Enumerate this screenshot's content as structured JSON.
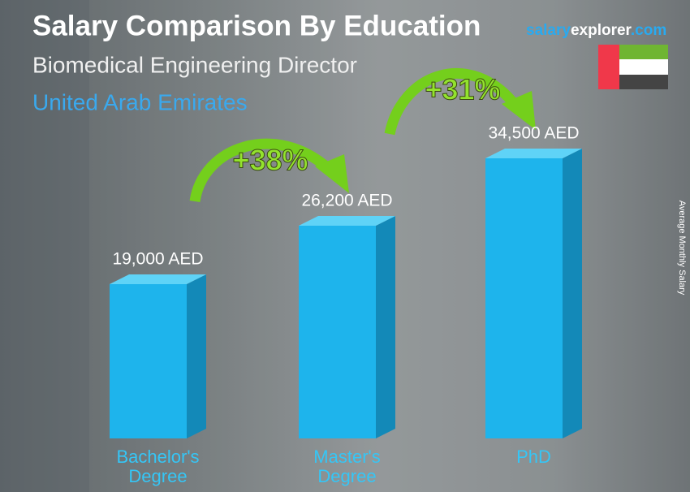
{
  "chart_data": {
    "type": "bar",
    "title": "Salary Comparison By Education",
    "subtitle": "Biomedical Engineering Director",
    "location": "United Arab Emirates",
    "brand": {
      "part1": "salary",
      "part2": "explorer",
      "part3": ".com"
    },
    "axis_label": "Average Monthly Salary",
    "categories": [
      "Bachelor's Degree",
      "Master's Degree",
      "PhD"
    ],
    "values": [
      19000,
      26200,
      34500
    ],
    "value_labels": [
      "19,000 AED",
      "26,200 AED",
      "34,500 AED"
    ],
    "color": "#1eb4ec",
    "annotations": [
      "+38%",
      "+31%"
    ]
  }
}
